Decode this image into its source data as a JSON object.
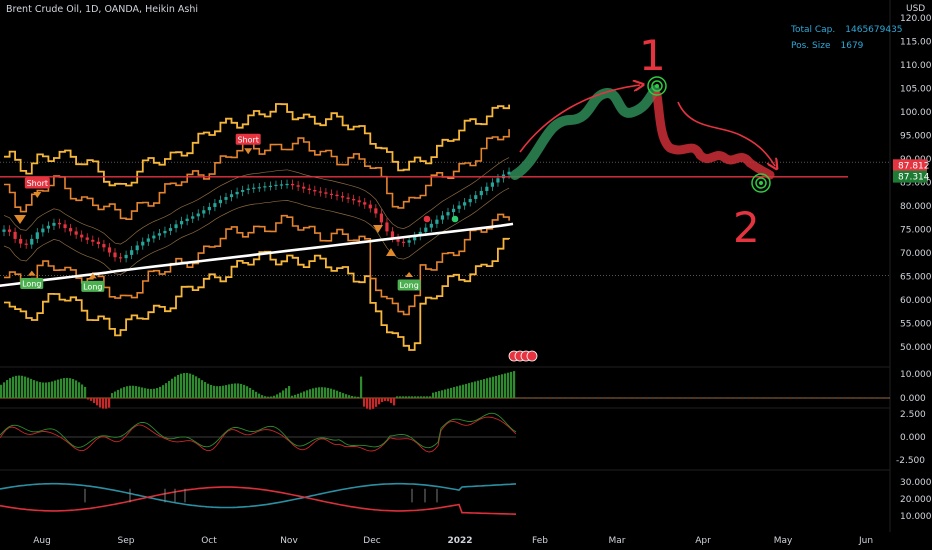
{
  "header": {
    "symbol_title": "Brent Crude Oil, 1D, OANDA, Heikin Ashi",
    "currency": "USD"
  },
  "stats": {
    "total_cap_label": "Total Cap.",
    "total_cap_value": "1465679435",
    "pos_size_label": "Pos. Size",
    "pos_size_value": "1679"
  },
  "annotations": {
    "peak_label": "1",
    "trough_label": "2"
  },
  "colors": {
    "background": "#000000",
    "bull": "#26a69a",
    "bear": "#e53340",
    "band_outer": "#f7b73a",
    "band_inner": "#e5832e",
    "ma": "#ffffff",
    "drawing_green": "#2e8b57",
    "drawing_red": "#d9303a",
    "label_short": "#e53340",
    "label_long": "#4caf50"
  },
  "chart_data": [
    {
      "type": "line",
      "name": "price",
      "x_ticks": [
        "Aug",
        "Sep",
        "Oct",
        "Nov",
        "Dec",
        "2022",
        "Feb",
        "Mar",
        "Apr",
        "May",
        "Jun"
      ],
      "y_ticks": [
        "120.000",
        "115.000",
        "110.000",
        "105.000",
        "100.000",
        "95.000",
        "90.000",
        "85.000",
        "80.000",
        "75.000",
        "70.000",
        "65.000",
        "60.000",
        "55.000",
        "50.000"
      ],
      "ylim": [
        48,
        122
      ],
      "price_labels": [
        {
          "text": "87.812",
          "value": 87.812,
          "color": "#e53340"
        },
        {
          "text": "87.314",
          "value": 87.314,
          "color": "#1e7b34"
        }
      ],
      "dotted_levels": [
        89.3,
        65.2
      ],
      "close": [
        75,
        74.5,
        73,
        72,
        71.8,
        73,
        74.4,
        75.2,
        75.8,
        76.4,
        76.1,
        75.3,
        74.6,
        73.9,
        73.3,
        72.8,
        72.4,
        71.9,
        71.2,
        70.1,
        69.1,
        68.9,
        69.6,
        70.6,
        71.6,
        72.4,
        73.1,
        73.7,
        74.2,
        74.7,
        75.3,
        76.1,
        76.8,
        77.3,
        77.8,
        78.4,
        79.1,
        79.8,
        80.6,
        81.3,
        81.9,
        82.5,
        83,
        83.4,
        83.7,
        83.9,
        84,
        84.2,
        84.3,
        84.5,
        84.6,
        84.7,
        84.4,
        84.1,
        83.7,
        83.4,
        83.1,
        82.9,
        82.6,
        82.4,
        82.1,
        81.8,
        81.5,
        81.2,
        80.8,
        80.3,
        79.5,
        78.4,
        76.5,
        74.6,
        73.2,
        72.4,
        72.2,
        72.7,
        73.6,
        74.5,
        75.4,
        76.2,
        77.1,
        78,
        78.7,
        79.4,
        80.1,
        80.8,
        81.5,
        82.3,
        83.2,
        84.1,
        85,
        85.9,
        86.7,
        87.3
      ],
      "ma": [
        63,
        63.3,
        63.6,
        64,
        64.3,
        64.6,
        64.9,
        65.2,
        65.5,
        65.8,
        66.2,
        66.5,
        66.8,
        67.1,
        67.4,
        67.7,
        68,
        68.3,
        68.6,
        68.9,
        69.2,
        69.5,
        69.8,
        70.1,
        70.4,
        70.7,
        71,
        71.3,
        71.6,
        71.9,
        72.2,
        72.5,
        72.8,
        73.1,
        73.4,
        73.7,
        74,
        74.3,
        74.6,
        74.9,
        75.2,
        75.5,
        75.8,
        76.2
      ],
      "markers": [
        {
          "text": "Short",
          "index": 6,
          "kind": "short"
        },
        {
          "text": "Short",
          "index": 44,
          "kind": "short"
        },
        {
          "text": "Long",
          "index": 5,
          "kind": "long"
        },
        {
          "text": "Long",
          "index": 16,
          "kind": "long"
        },
        {
          "text": "Long",
          "index": 73,
          "kind": "long"
        }
      ]
    },
    {
      "type": "bar",
      "name": "histogram",
      "y_ticks": [
        "10.000",
        "0.000"
      ],
      "ylim": [
        -4,
        13
      ]
    },
    {
      "type": "line",
      "name": "oscillator",
      "y_ticks": [
        "2.500",
        "0.000",
        "-2.500"
      ],
      "ylim": [
        -3.5,
        3.2
      ]
    },
    {
      "type": "line",
      "name": "dmi",
      "y_ticks": [
        "30.000",
        "20.000",
        "10.000"
      ],
      "ylim": [
        5,
        36
      ]
    }
  ]
}
